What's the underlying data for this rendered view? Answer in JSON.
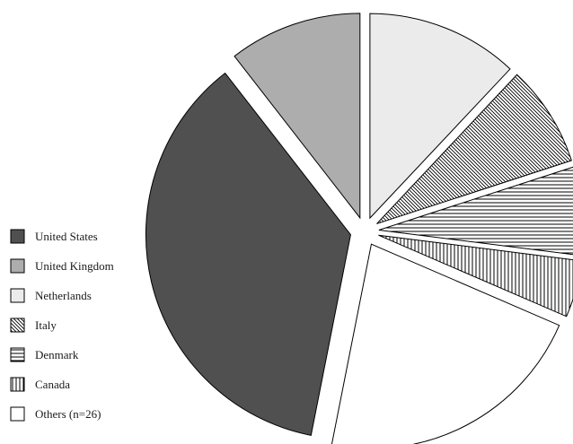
{
  "chart_data": {
    "type": "pie",
    "title": "",
    "exploded": true,
    "legend_position": "left-bottom",
    "categories": [
      "United States",
      "United Kingdom",
      "Netherlands",
      "Italy",
      "Denmark",
      "Canada",
      "Others (n=26)"
    ],
    "values": [
      36.4,
      10.5,
      12.0,
      8.0,
      7.0,
      4.5,
      21.6
    ],
    "unit": "%",
    "colors": [
      "#505050",
      "#adadad",
      "#ebebeb",
      "#ffffff",
      "#ffffff",
      "#ffffff",
      "#ffffff"
    ],
    "fill_patterns": [
      "solid",
      "solid",
      "solid",
      "diagonal",
      "horizontal",
      "vertical",
      "solid"
    ]
  }
}
